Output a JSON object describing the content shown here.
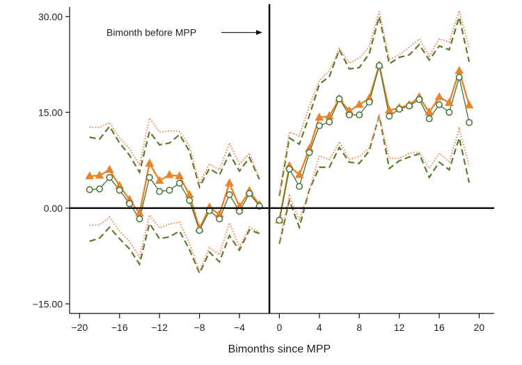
{
  "chart_data": {
    "type": "line",
    "title": "",
    "xlabel": "Bimonths since MPP",
    "ylabel": "",
    "xlim": [
      -21,
      21.5
    ],
    "ylim": [
      -16.5,
      31.5
    ],
    "xticks": [
      -20,
      -16,
      -12,
      -8,
      -4,
      0,
      4,
      8,
      12,
      16,
      20
    ],
    "xtick_labels": [
      "−20",
      "−16",
      "−12",
      "−8",
      "−4",
      "0",
      "4",
      "8",
      "12",
      "16",
      "20"
    ],
    "yticks": [
      30,
      15,
      0,
      -15
    ],
    "ytick_labels": [
      "30.00",
      "15.00",
      "0.00",
      "−15.00"
    ],
    "reference_lines": {
      "horizontal": 0,
      "vertical": -1
    },
    "annotation": {
      "text": "Bimonth before MPP",
      "target_x": -1,
      "y": 27.5
    },
    "colors": {
      "orange": "#E8842A",
      "green": "#4A7A3A",
      "green_dashed": "#5A7A2E",
      "orange_dotted": "#F08A5A",
      "axis": "#111111"
    },
    "series": [
      {
        "style": "orange-triangles",
        "segments": [
          {
            "x": [
              -19,
              -18,
              -17,
              -16,
              -15,
              -14,
              -13,
              -12,
              -11,
              -10,
              -9,
              -8,
              -7,
              -6,
              -5,
              -4,
              -3,
              -2
            ],
            "y": [
              5.0,
              5.1,
              6.0,
              3.5,
              1.3,
              -0.8,
              7.0,
              4.3,
              5.2,
              5.0,
              2.1,
              -3.2,
              0.1,
              -1.0,
              3.9,
              0.2,
              2.7,
              0.5
            ]
          },
          {
            "x": [
              0,
              1,
              2,
              3,
              4,
              5,
              6,
              7,
              8,
              9,
              10,
              11,
              12,
              13,
              14,
              15,
              16,
              17,
              18,
              19
            ],
            "y": [
              -1.9,
              6.6,
              5.2,
              9.3,
              14.2,
              14.4,
              17.1,
              15.2,
              16.2,
              17.2,
              22.4,
              15.3,
              15.7,
              16.2,
              17.4,
              15.0,
              17.4,
              16.5,
              21.5,
              16.1
            ]
          }
        ]
      },
      {
        "style": "green-circles",
        "segments": [
          {
            "x": [
              -19,
              -18,
              -17,
              -16,
              -15,
              -14,
              -13,
              -12,
              -11,
              -10,
              -9,
              -8,
              -7,
              -6,
              -5,
              -4,
              -3,
              -2
            ],
            "y": [
              2.9,
              3.0,
              4.8,
              2.8,
              0.7,
              -1.7,
              4.8,
              2.6,
              2.8,
              3.9,
              1.2,
              -3.5,
              -0.4,
              -1.7,
              2.1,
              -0.5,
              2.3,
              0.3
            ]
          },
          {
            "x": [
              0,
              1,
              2,
              3,
              4,
              5,
              6,
              7,
              8,
              9,
              10,
              11,
              12,
              13,
              14,
              15,
              16,
              17,
              18,
              19
            ],
            "y": [
              -1.9,
              6.1,
              3.4,
              8.7,
              12.9,
              13.5,
              17.1,
              14.6,
              14.6,
              16.6,
              22.3,
              14.4,
              15.5,
              16.0,
              17.0,
              14.0,
              16.2,
              15.0,
              20.5,
              13.4
            ]
          }
        ]
      },
      {
        "style": "green-dashed",
        "segments": [
          {
            "x": [
              -19,
              -18,
              -17,
              -16,
              -15,
              -14,
              -13,
              -12,
              -11,
              -10,
              -9,
              -8,
              -7,
              -6,
              -5,
              -4,
              -3,
              -2
            ],
            "y": [
              11.1,
              10.8,
              12.8,
              10.2,
              8.3,
              5.6,
              12.0,
              9.9,
              10.2,
              11.5,
              8.9,
              3.3,
              6.2,
              5.2,
              8.5,
              5.8,
              7.9,
              4.5
            ]
          },
          {
            "x": [
              0,
              1,
              2,
              3,
              4,
              5,
              6,
              7,
              8,
              9,
              10,
              11,
              12,
              13,
              14,
              15,
              16,
              17,
              18,
              19
            ],
            "y": [
              1.9,
              11.0,
              10.0,
              14.5,
              19.4,
              20.6,
              24.8,
              21.8,
              22.0,
              24.2,
              30.0,
              22.6,
              23.6,
              24.0,
              25.6,
              23.2,
              25.4,
              24.8,
              29.9,
              22.9
            ]
          },
          {
            "x": [
              -19,
              -18,
              -17,
              -16,
              -15,
              -14,
              -13,
              -12,
              -11,
              -10,
              -9,
              -8,
              -7,
              -6,
              -5,
              -4,
              -3,
              -2
            ],
            "y": [
              -5.2,
              -4.7,
              -3.0,
              -4.8,
              -6.4,
              -8.8,
              -2.4,
              -4.8,
              -4.5,
              -3.6,
              -6.5,
              -10.2,
              -6.9,
              -8.4,
              -4.3,
              -6.6,
              -3.4,
              -4.0
            ]
          },
          {
            "x": [
              0,
              1,
              2,
              3,
              4,
              5,
              6,
              7,
              8,
              9,
              10,
              11,
              12,
              13,
              14,
              15,
              16,
              17,
              18,
              19
            ],
            "y": [
              -5.6,
              1.2,
              -3.0,
              2.9,
              6.4,
              6.4,
              9.5,
              7.2,
              7.0,
              9.0,
              14.5,
              6.2,
              7.4,
              8.0,
              8.5,
              4.8,
              7.2,
              6.0,
              11.0,
              4.0
            ]
          }
        ]
      },
      {
        "style": "orange-dotted",
        "segments": [
          {
            "x": [
              -19,
              -18,
              -17,
              -16,
              -15,
              -14,
              -13,
              -12,
              -11,
              -10,
              -9,
              -8,
              -7,
              -6,
              -5,
              -4,
              -3,
              -2
            ],
            "y": [
              12.7,
              12.6,
              13.4,
              11.0,
              9.3,
              6.7,
              14.1,
              11.9,
              12.1,
              12.0,
              9.7,
              3.8,
              6.9,
              6.0,
              10.2,
              6.9,
              8.6,
              4.7
            ]
          },
          {
            "x": [
              0,
              1,
              2,
              3,
              4,
              5,
              6,
              7,
              8,
              9,
              10,
              11,
              12,
              13,
              14,
              15,
              16,
              17,
              18,
              19
            ],
            "y": [
              2.2,
              11.9,
              11.3,
              16.0,
              20.0,
              21.5,
              25.0,
              22.7,
              23.5,
              25.3,
              30.8,
              23.3,
              24.0,
              25.2,
              26.5,
              23.8,
              26.5,
              26.0,
              30.9,
              25.1
            ]
          },
          {
            "x": [
              -19,
              -18,
              -17,
              -16,
              -15,
              -14,
              -13,
              -12,
              -11,
              -10,
              -9,
              -8,
              -7,
              -6,
              -5,
              -4,
              -3,
              -2
            ],
            "y": [
              -2.7,
              -2.6,
              -1.4,
              -3.6,
              -5.2,
              -7.7,
              -1.1,
              -3.1,
              -2.5,
              -2.2,
              -5.5,
              -9.9,
              -6.2,
              -7.3,
              -2.3,
              -6.1,
              -3.0,
              -3.8
            ]
          },
          {
            "x": [
              0,
              1,
              2,
              3,
              4,
              5,
              6,
              7,
              8,
              9,
              10,
              11,
              12,
              13,
              14,
              15,
              16,
              17,
              18,
              19
            ],
            "y": [
              -5.4,
              1.9,
              -1.8,
              2.8,
              8.2,
              7.6,
              10.4,
              7.6,
              8.1,
              9.4,
              14.4,
              7.8,
              7.8,
              8.6,
              8.7,
              6.2,
              8.6,
              7.3,
              12.4,
              6.6
            ]
          }
        ]
      }
    ]
  }
}
